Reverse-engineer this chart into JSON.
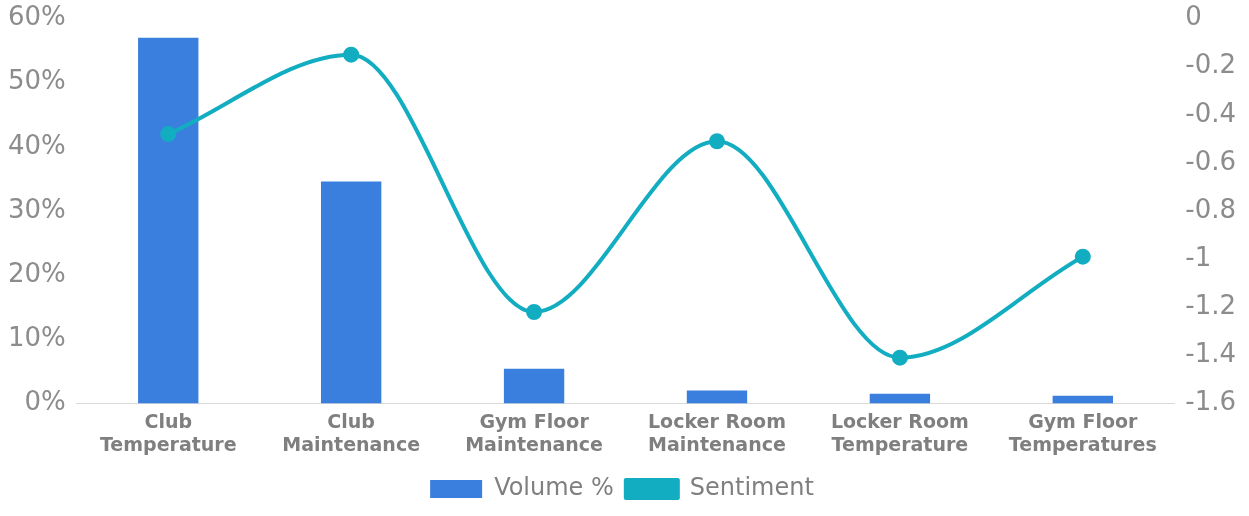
{
  "chart_data": {
    "type": "bar",
    "categories": [
      "Club Temperature",
      "Club Maintenance",
      "Gym Floor Maintenance",
      "Locker Room Maintenance",
      "Locker Room Temperature",
      "Gym Floor Temperatures"
    ],
    "series": [
      {
        "name": "Volume %",
        "color": "#3a7fde",
        "values": [
          57,
          34.6,
          5.4,
          2,
          1.5,
          1.2
        ]
      },
      {
        "name": "Sentiment",
        "type": "line",
        "axis": "y2",
        "color": "#13adc1",
        "marker": "circle",
        "values": [
          -0.48,
          -0.15,
          -1.22,
          -0.51,
          -1.41,
          -0.99
        ]
      }
    ],
    "ylim": [
      0,
      60
    ],
    "yticks": [
      {
        "value": 0,
        "label": "0%"
      },
      {
        "value": 10,
        "label": "10%"
      },
      {
        "value": 20,
        "label": "20%"
      },
      {
        "value": 30,
        "label": "30%"
      },
      {
        "value": 40,
        "label": "40%"
      },
      {
        "value": 50,
        "label": "50%"
      },
      {
        "value": 60,
        "label": "60%"
      }
    ],
    "y2lim": [
      -1.6,
      0
    ],
    "y2ticks": [
      -1.6,
      -1.4,
      -1.2,
      -1,
      -0.8,
      -0.6,
      -0.4,
      -0.2,
      0
    ],
    "grid": false,
    "legend": "bottom"
  }
}
